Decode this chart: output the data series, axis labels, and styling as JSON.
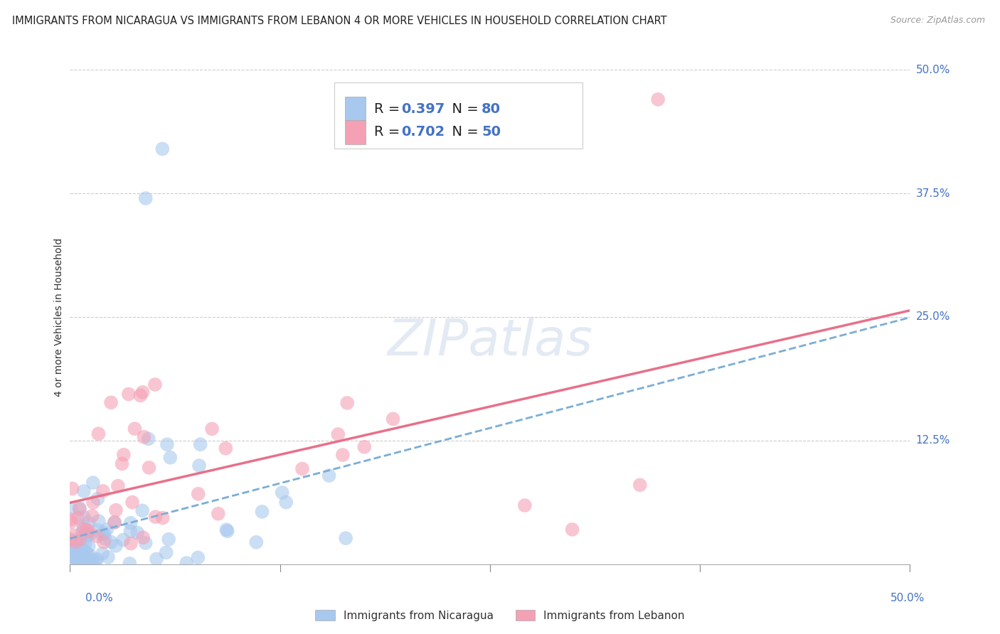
{
  "title": "IMMIGRANTS FROM NICARAGUA VS IMMIGRANTS FROM LEBANON 4 OR MORE VEHICLES IN HOUSEHOLD CORRELATION CHART",
  "source": "Source: ZipAtlas.com",
  "ylabel": "4 or more Vehicles in Household",
  "ytick_values": [
    0.0,
    12.5,
    25.0,
    37.5,
    50.0
  ],
  "xlim": [
    0.0,
    50.0
  ],
  "ylim": [
    0.0,
    50.0
  ],
  "R_nicaragua": 0.397,
  "N_nicaragua": 80,
  "R_lebanon": 0.702,
  "N_lebanon": 50,
  "color_nicaragua": "#a8c8ee",
  "color_lebanon": "#f4a0b5",
  "color_nicaragua_line": "#7aaed6",
  "color_lebanon_line": "#e8708a",
  "legend_label_nicaragua": "Immigrants from Nicaragua",
  "legend_label_lebanon": "Immigrants from Lebanon",
  "watermark": "ZIPatlas",
  "legend_R_color": "#000000",
  "legend_N_color": "#4472c4",
  "ytick_color": "#4472c4",
  "title_fontsize": 10.5,
  "source_fontsize": 9,
  "axis_label_fontsize": 10,
  "tick_fontsize": 11,
  "legend_fontsize": 14
}
